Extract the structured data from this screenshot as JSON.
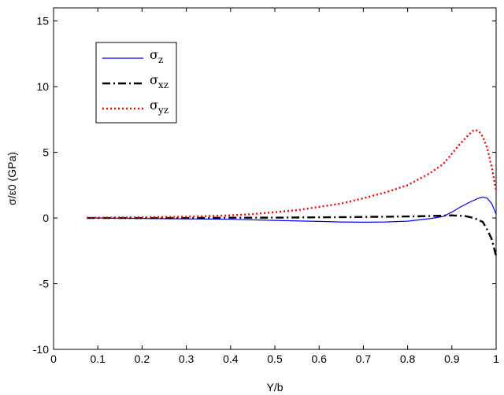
{
  "chart_data": {
    "type": "line",
    "title": "",
    "xlabel": "Y/b",
    "ylabel": "σ/ε0 (GPa)",
    "xlim": [
      0,
      1
    ],
    "ylim": [
      -10,
      16
    ],
    "xticks": [
      "0",
      "0.1",
      "0.2",
      "0.3",
      "0.4",
      "0.5",
      "0.6",
      "0.7",
      "0.8",
      "0.9",
      "1"
    ],
    "yticks": [
      "-10",
      "-5",
      "0",
      "5",
      "10",
      "15"
    ],
    "grid": false,
    "legend_position": "top-left",
    "series": [
      {
        "name": "σz",
        "color": "#0000ff",
        "style": "solid",
        "x": [
          0.075,
          0.1,
          0.2,
          0.3,
          0.4,
          0.5,
          0.6,
          0.65,
          0.7,
          0.75,
          0.8,
          0.85,
          0.88,
          0.9,
          0.92,
          0.94,
          0.96,
          0.97,
          0.98,
          0.99,
          1.0
        ],
        "y": [
          0.0,
          0.0,
          -0.03,
          -0.06,
          -0.1,
          -0.18,
          -0.26,
          -0.3,
          -0.32,
          -0.3,
          -0.24,
          -0.05,
          0.12,
          0.45,
          0.85,
          1.2,
          1.5,
          1.6,
          1.5,
          1.1,
          0.3
        ]
      },
      {
        "name": "σxz",
        "color": "#000000",
        "style": "dashdot",
        "x": [
          0.075,
          0.1,
          0.2,
          0.3,
          0.4,
          0.5,
          0.6,
          0.7,
          0.8,
          0.85,
          0.9,
          0.93,
          0.95,
          0.97,
          0.98,
          0.99,
          1.0
        ],
        "y": [
          0.0,
          0.0,
          0.0,
          0.0,
          0.02,
          0.03,
          0.05,
          0.08,
          0.12,
          0.15,
          0.2,
          0.15,
          0.0,
          -0.3,
          -0.9,
          -1.6,
          -2.9
        ]
      },
      {
        "name": "σyz",
        "color": "#ff0000",
        "style": "dotted",
        "x": [
          0.075,
          0.1,
          0.2,
          0.3,
          0.4,
          0.45,
          0.5,
          0.55,
          0.6,
          0.65,
          0.7,
          0.75,
          0.8,
          0.85,
          0.88,
          0.9,
          0.92,
          0.94,
          0.95,
          0.96,
          0.97,
          0.98,
          0.99,
          1.0
        ],
        "y": [
          0.02,
          0.03,
          0.06,
          0.1,
          0.2,
          0.3,
          0.45,
          0.6,
          0.85,
          1.1,
          1.5,
          1.95,
          2.5,
          3.4,
          4.1,
          4.9,
          5.7,
          6.4,
          6.7,
          6.65,
          6.2,
          5.3,
          3.9,
          2.1
        ]
      }
    ]
  }
}
